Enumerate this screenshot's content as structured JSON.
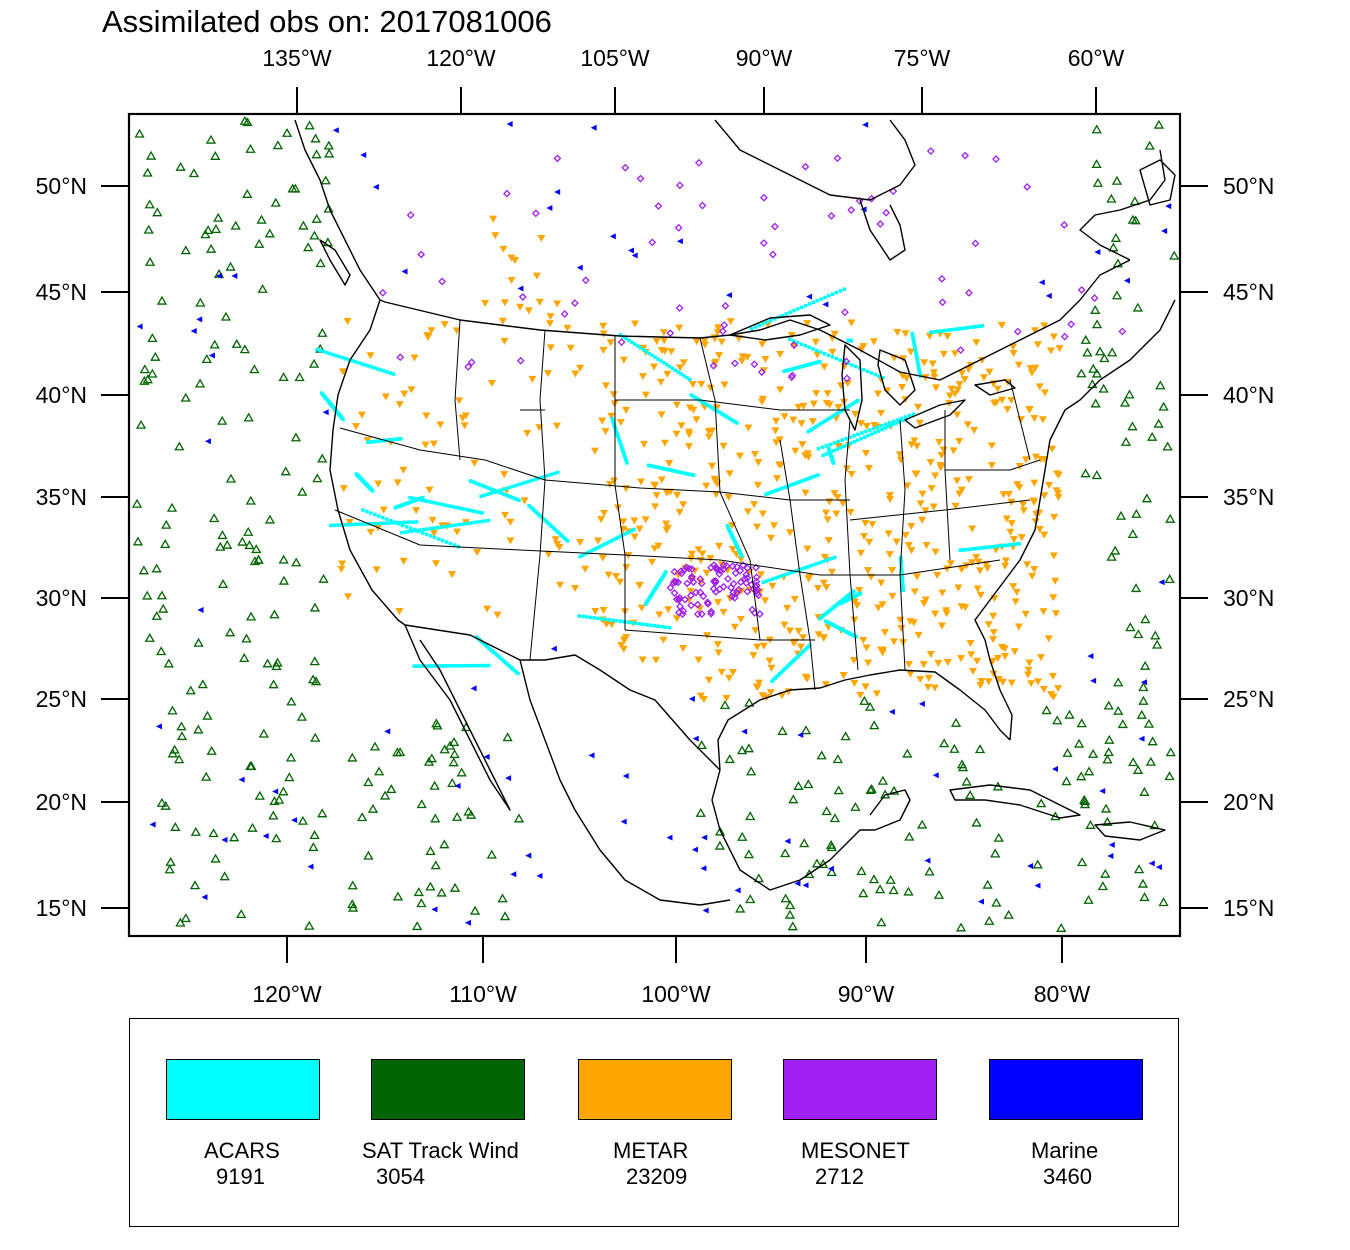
{
  "title": "Assimilated obs on: 2017081006",
  "map": {
    "top_axis_labels": [
      "135°W",
      "120°W",
      "105°W",
      "90°W",
      "75°W",
      "60°W"
    ],
    "bottom_axis_labels": [
      "120°W",
      "110°W",
      "100°W",
      "90°W",
      "80°W"
    ],
    "left_axis_labels": [
      "50°N",
      "45°N",
      "40°N",
      "35°N",
      "30°N",
      "25°N",
      "20°N",
      "15°N"
    ],
    "right_axis_labels": [
      "50°N",
      "45°N",
      "40°N",
      "35°N",
      "30°N",
      "25°N",
      "20°N",
      "15°N"
    ]
  },
  "legend": [
    {
      "name": "ACARS",
      "count": "9191",
      "color": "#00ffff"
    },
    {
      "name": "SAT Track Wind",
      "count": "3054",
      "color": "#006400"
    },
    {
      "name": "METAR",
      "count": "23209",
      "color": "#ffa500"
    },
    {
      "name": "MESONET",
      "count": "2712",
      "color": "#a020f0"
    },
    {
      "name": "Marine",
      "count": "3460",
      "color": "#0000ff"
    }
  ]
}
